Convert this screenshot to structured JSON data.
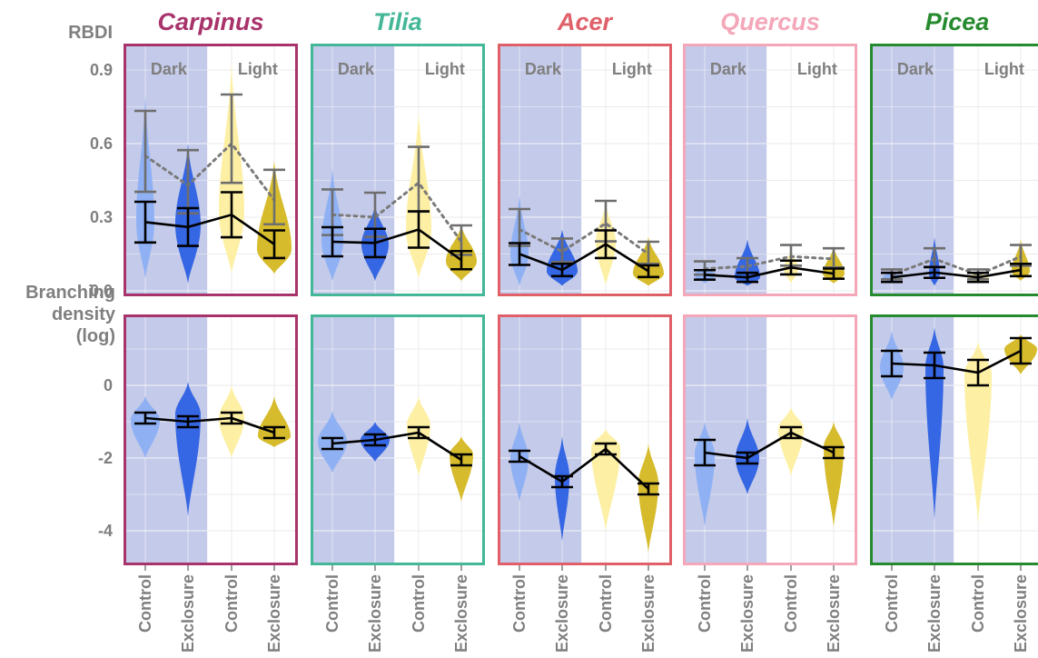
{
  "chart_data": {
    "type": "violin",
    "species": [
      {
        "name": "Carpinus",
        "color": "#a8336b"
      },
      {
        "name": "Tilia",
        "color": "#43b797"
      },
      {
        "name": "Acer",
        "color": "#e0606a"
      },
      {
        "name": "Quercus",
        "color": "#f4a7b9"
      },
      {
        "name": "Picea",
        "color": "#268a2e"
      }
    ],
    "groups": [
      "Dark",
      "Light"
    ],
    "categories": [
      "Control",
      "Exclosure",
      "Control",
      "Exclosure"
    ],
    "fill_colors": [
      "#8fb1f4",
      "#3566e3",
      "#fdf0a4",
      "#d6bb2c"
    ],
    "shade_color": "#c4cae9",
    "rbdi": {
      "label": "RBDI",
      "ylim": [
        0,
        0.95
      ],
      "ticks": [
        "0.0",
        "0.3",
        "0.6",
        "0.9"
      ],
      "mean_line": {
        "Carpinus": [
          0.28,
          0.26,
          0.31,
          0.19
        ],
        "Tilia": [
          0.2,
          0.195,
          0.25,
          0.125
        ],
        "Acer": [
          0.15,
          0.085,
          0.19,
          0.08
        ],
        "Quercus": [
          0.065,
          0.055,
          0.095,
          0.07
        ],
        "Picea": [
          0.055,
          0.075,
          0.055,
          0.085
        ]
      },
      "dotted_line": {
        "Carpinus": [
          0.55,
          0.43,
          0.6,
          0.37
        ],
        "Tilia": [
          0.31,
          0.3,
          0.44,
          0.2
        ],
        "Acer": [
          0.25,
          0.16,
          0.275,
          0.15
        ],
        "Quercus": [
          0.09,
          0.1,
          0.14,
          0.13
        ],
        "Picea": [
          0.065,
          0.13,
          0.065,
          0.14
        ]
      }
    },
    "branching": {
      "label": "Branching density (log)",
      "label_lines": [
        "Branching",
        "density",
        "(log)"
      ],
      "ylim": [
        -5,
        2
      ],
      "ticks": [
        "-4",
        "-2",
        "0"
      ],
      "mean_line": {
        "Carpinus": [
          -0.9,
          -1.0,
          -0.9,
          -1.3
        ],
        "Tilia": [
          -1.6,
          -1.5,
          -1.3,
          -2.05
        ],
        "Acer": [
          -1.95,
          -2.65,
          -1.75,
          -2.85
        ],
        "Quercus": [
          -1.85,
          -2.0,
          -1.3,
          -1.85
        ],
        "Picea": [
          0.6,
          0.55,
          0.35,
          0.95
        ]
      }
    }
  }
}
